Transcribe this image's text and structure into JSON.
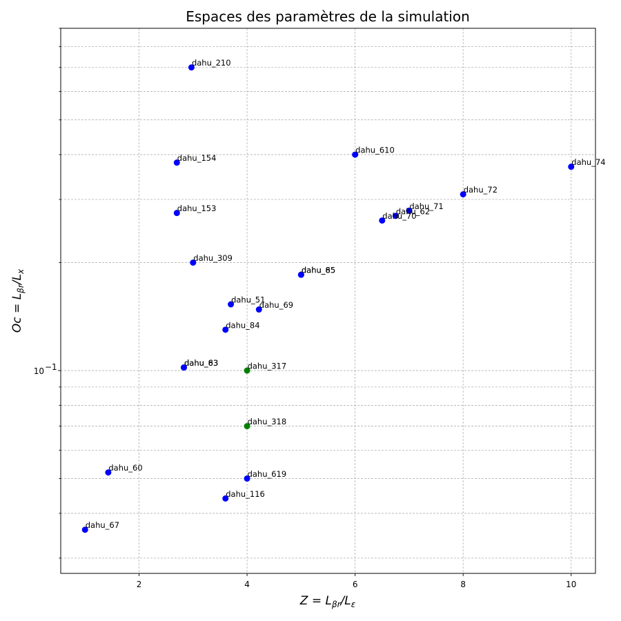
{
  "chart_data": {
    "type": "scatter",
    "title": "Espaces des paramètres de la simulation",
    "xlabel": {
      "main": "Z = L",
      "sub1": "βr",
      "mid": "/L",
      "sub2": "ε"
    },
    "ylabel": {
      "main": "Oc = L",
      "sub1": "βr",
      "mid": "/L",
      "sub2": "x"
    },
    "xlim": [
      0.55,
      10.45
    ],
    "ylim": [
      0.0272,
      0.9
    ],
    "yscale": "log",
    "x_ticks": [
      2,
      4,
      6,
      8,
      10
    ],
    "x_tick_labels": [
      "2",
      "4",
      "6",
      "8",
      "10"
    ],
    "y_major_ticks": [
      {
        "value": 0.1,
        "label": "10",
        "exp": "−1"
      }
    ],
    "y_minor_ticks": [
      0.03,
      0.04,
      0.05,
      0.06,
      0.07,
      0.08,
      0.09,
      0.2,
      0.3,
      0.4,
      0.5,
      0.6,
      0.7,
      0.8,
      0.9
    ],
    "grid": true,
    "colors": {
      "blue": "#0000ff",
      "green": "#008000"
    },
    "points": [
      {
        "name": "dahu_210",
        "x": 2.97,
        "y": 0.7,
        "color": "blue"
      },
      {
        "name": "dahu_610",
        "x": 6.0,
        "y": 0.4,
        "color": "blue"
      },
      {
        "name": "dahu_74",
        "x": 10.0,
        "y": 0.37,
        "color": "blue"
      },
      {
        "name": "dahu_154",
        "x": 2.7,
        "y": 0.38,
        "color": "blue"
      },
      {
        "name": "dahu_72",
        "x": 8.0,
        "y": 0.31,
        "color": "blue"
      },
      {
        "name": "dahu_153",
        "x": 2.7,
        "y": 0.275,
        "color": "blue"
      },
      {
        "name": "dahu_71",
        "x": 7.0,
        "y": 0.279,
        "color": "blue"
      },
      {
        "name": "dahu_62",
        "x": 6.75,
        "y": 0.27,
        "color": "blue"
      },
      {
        "name": "dahu_70",
        "x": 6.5,
        "y": 0.262,
        "color": "blue"
      },
      {
        "name": "dahu_309",
        "x": 3.0,
        "y": 0.2,
        "color": "blue"
      },
      {
        "name": "dahu_85",
        "x": 5.0,
        "y": 0.185,
        "color": "blue"
      },
      {
        "name": "dahu_65",
        "x": 5.0,
        "y": 0.185,
        "color": "blue"
      },
      {
        "name": "dahu_51",
        "x": 3.7,
        "y": 0.153,
        "color": "blue"
      },
      {
        "name": "dahu_69",
        "x": 4.22,
        "y": 0.148,
        "color": "blue"
      },
      {
        "name": "dahu_84",
        "x": 3.6,
        "y": 0.13,
        "color": "blue"
      },
      {
        "name": "dahu_83",
        "x": 2.83,
        "y": 0.102,
        "color": "blue"
      },
      {
        "name": "dahu_63",
        "x": 2.83,
        "y": 0.102,
        "color": "blue"
      },
      {
        "name": "dahu_317",
        "x": 4.0,
        "y": 0.1,
        "color": "green"
      },
      {
        "name": "dahu_318",
        "x": 4.0,
        "y": 0.07,
        "color": "green"
      },
      {
        "name": "dahu_60",
        "x": 1.43,
        "y": 0.052,
        "color": "blue"
      },
      {
        "name": "dahu_619",
        "x": 4.0,
        "y": 0.05,
        "color": "blue"
      },
      {
        "name": "dahu_116",
        "x": 3.6,
        "y": 0.044,
        "color": "blue"
      },
      {
        "name": "dahu_67",
        "x": 1.0,
        "y": 0.036,
        "color": "blue"
      }
    ]
  }
}
